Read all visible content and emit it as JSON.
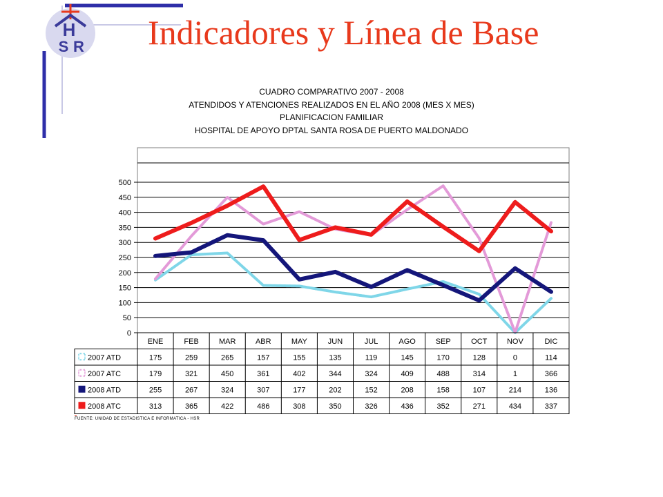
{
  "slide_title": "Indicadores y Línea de Base",
  "logo": {
    "letters": [
      "H",
      "S",
      "R"
    ],
    "colors": {
      "circle": "#d9d9ef",
      "letters": "#3b3b9a",
      "cross": "#e8391c"
    }
  },
  "source_note": "FUENTE: UNIDAD DE ESTADISTICA E INFORMATICA - HSR",
  "chart_data": {
    "type": "line",
    "title_lines": [
      "CUADRO COMPARATIVO 2007 - 2008",
      "ATENDIDOS Y ATENCIONES  REALIZADOS EN  EL AÑO 2008 (MES X MES)",
      "PLANIFICACION FAMILIAR",
      "HOSPITAL DE APOYO DPTAL SANTA ROSA DE PUERTO MALDONADO"
    ],
    "categories": [
      "ENE",
      "FEB",
      "MAR",
      "ABR",
      "MAY",
      "JUN",
      "JUL",
      "AGO",
      "SEP",
      "OCT",
      "NOV",
      "DIC"
    ],
    "y_ticks": [
      0,
      50,
      100,
      150,
      200,
      250,
      300,
      350,
      400,
      450,
      500
    ],
    "ylim": [
      0,
      500
    ],
    "grid": true,
    "legend": "data-table-below",
    "series": [
      {
        "name": "2007 ATD",
        "color": "#7fd6e8",
        "style": "dotted-thin",
        "values": [
          175,
          259,
          265,
          157,
          155,
          135,
          119,
          145,
          170,
          128,
          0,
          114
        ]
      },
      {
        "name": "2007 ATC",
        "color": "#e39ad8",
        "style": "dotted-thin",
        "values": [
          179,
          321,
          450,
          361,
          402,
          344,
          324,
          409,
          488,
          314,
          1,
          366
        ]
      },
      {
        "name": "2008 ATD",
        "color": "#14167a",
        "style": "thick",
        "values": [
          255,
          267,
          324,
          307,
          177,
          202,
          152,
          208,
          158,
          107,
          214,
          136
        ]
      },
      {
        "name": "2008 ATC",
        "color": "#ee1c1c",
        "style": "thick",
        "values": [
          313,
          365,
          422,
          486,
          308,
          350,
          326,
          436,
          352,
          271,
          434,
          337
        ]
      }
    ]
  }
}
